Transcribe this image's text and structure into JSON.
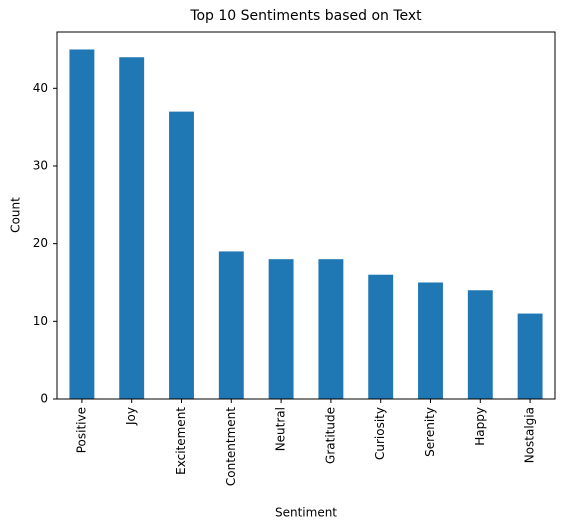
{
  "chart_data": {
    "type": "bar",
    "title": "Top 10 Sentiments based on Text",
    "x_label": "Sentiment",
    "y_label": "Count",
    "categories": [
      "Positive",
      "Joy",
      "Excitement",
      "Contentment",
      "Neutral",
      "Gratitude",
      "Curiosity",
      "Serenity",
      "Happy",
      "Nostalgia"
    ],
    "values": [
      45,
      44,
      37,
      19,
      18,
      18,
      16,
      15,
      14,
      11
    ],
    "color": "#1f77b4",
    "ylim": [
      0,
      47.25
    ],
    "yticks": [
      0,
      10,
      20,
      30,
      40
    ],
    "grid": false
  }
}
